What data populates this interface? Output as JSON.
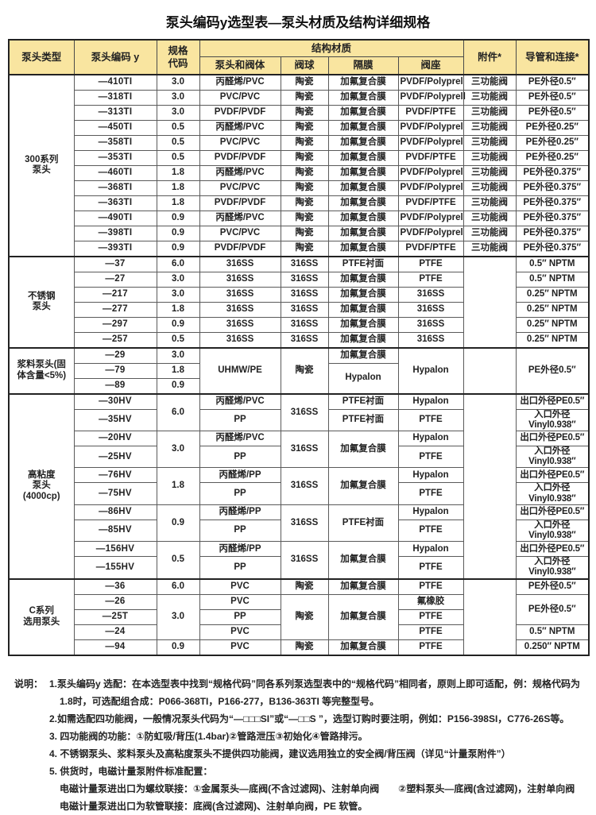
{
  "title": "泵头编码y选型表—泵头材质及结构详细规格",
  "table": {
    "headers": {
      "pump_type": "泵头类型",
      "pump_code": "泵头编码 y",
      "spec_code": "规格\n代码",
      "structure_material": "结构材质",
      "head_valve_body": "泵头和阀体",
      "valve_ball": "阀球",
      "diaphragm": "隔膜",
      "valve_seat": "阀座",
      "accessory": "附件*",
      "tubing": "导管和连接*"
    },
    "header_bg_color": "#f9e5a0",
    "groups": [
      {
        "rows": [
          [
            {
              "t": "300系列\n泵头",
              "rs": 12
            },
            {
              "t": "—410TI"
            },
            {
              "t": "3.0"
            },
            {
              "t": "丙醛烯/PVC"
            },
            {
              "t": "陶瓷"
            },
            {
              "t": "加氟复合膜"
            },
            {
              "t": "PVDF/Polyprel"
            },
            {
              "t": "三功能阀"
            },
            {
              "t": "PE外径0.5″"
            }
          ],
          [
            null,
            {
              "t": "—318TI"
            },
            {
              "t": "3.0"
            },
            {
              "t": "PVC/PVC"
            },
            {
              "t": "陶瓷"
            },
            {
              "t": "加氟复合膜"
            },
            {
              "t": "PVDF/Polyprell"
            },
            {
              "t": "三功能阀"
            },
            {
              "t": "PE外径0.5″"
            }
          ],
          [
            null,
            {
              "t": "—313TI"
            },
            {
              "t": "3.0"
            },
            {
              "t": "PVDF/PVDF"
            },
            {
              "t": "陶瓷"
            },
            {
              "t": "加氟复合膜"
            },
            {
              "t": "PVDF/PTFE"
            },
            {
              "t": "三功能阀"
            },
            {
              "t": "PE外径0.5″"
            }
          ],
          [
            null,
            {
              "t": "—450TI"
            },
            {
              "t": "0.5"
            },
            {
              "t": "丙醛烯/PVC"
            },
            {
              "t": "陶瓷"
            },
            {
              "t": "加氟复合膜"
            },
            {
              "t": "PVDF/Polyprel"
            },
            {
              "t": "三功能阀"
            },
            {
              "t": "PE外径0.25″"
            }
          ],
          [
            null,
            {
              "t": "—358TI"
            },
            {
              "t": "0.5"
            },
            {
              "t": "PVC/PVC"
            },
            {
              "t": "陶瓷"
            },
            {
              "t": "加氟复合膜"
            },
            {
              "t": "PVDF/Polyprel"
            },
            {
              "t": "三功能阀"
            },
            {
              "t": "PE外径0.25″"
            }
          ],
          [
            null,
            {
              "t": "—353TI"
            },
            {
              "t": "0.5"
            },
            {
              "t": "PVDF/PVDF"
            },
            {
              "t": "陶瓷"
            },
            {
              "t": "加氟复合膜"
            },
            {
              "t": "PVDF/PTFE"
            },
            {
              "t": "三功能阀"
            },
            {
              "t": "PE外径0.25″"
            }
          ],
          [
            null,
            {
              "t": "—460TI"
            },
            {
              "t": "1.8"
            },
            {
              "t": "丙醛烯/PVC"
            },
            {
              "t": "陶瓷"
            },
            {
              "t": "加氟复合膜"
            },
            {
              "t": "PVDF/Polyprel"
            },
            {
              "t": "三功能阀"
            },
            {
              "t": "PE外径0.375″"
            }
          ],
          [
            null,
            {
              "t": "—368TI"
            },
            {
              "t": "1.8"
            },
            {
              "t": "PVC/PVC"
            },
            {
              "t": "陶瓷"
            },
            {
              "t": "加氟复合膜"
            },
            {
              "t": "PVDF/Polyprel"
            },
            {
              "t": "三功能阀"
            },
            {
              "t": "PE外径0.375″"
            }
          ],
          [
            null,
            {
              "t": "—363TI"
            },
            {
              "t": "1.8"
            },
            {
              "t": "PVDF/PVDF"
            },
            {
              "t": "陶瓷"
            },
            {
              "t": "加氟复合膜"
            },
            {
              "t": "PVDF/PTFE"
            },
            {
              "t": "三功能阀"
            },
            {
              "t": "PE外径0.375″"
            }
          ],
          [
            null,
            {
              "t": "—490TI"
            },
            {
              "t": "0.9"
            },
            {
              "t": "丙醛烯/PVC"
            },
            {
              "t": "陶瓷"
            },
            {
              "t": "加氟复合膜"
            },
            {
              "t": "PVDF/Polyprel"
            },
            {
              "t": "三功能阀"
            },
            {
              "t": "PE外径0.375″"
            }
          ],
          [
            null,
            {
              "t": "—398TI"
            },
            {
              "t": "0.9"
            },
            {
              "t": "PVC/PVC"
            },
            {
              "t": "陶瓷"
            },
            {
              "t": "加氟复合膜"
            },
            {
              "t": "PVDF/Polyprel"
            },
            {
              "t": "三功能阀"
            },
            {
              "t": "PE外径0.375″"
            }
          ],
          [
            null,
            {
              "t": "—393TI"
            },
            {
              "t": "0.9"
            },
            {
              "t": "PVDF/PVDF"
            },
            {
              "t": "陶瓷"
            },
            {
              "t": "加氟复合膜"
            },
            {
              "t": "PVDF/PTFE"
            },
            {
              "t": "三功能阀"
            },
            {
              "t": "PE外径0.375″"
            }
          ]
        ]
      },
      {
        "rows": [
          [
            {
              "t": "不锈钢\n泵头",
              "rs": 6
            },
            {
              "t": "—37"
            },
            {
              "t": "6.0"
            },
            {
              "t": "316SS"
            },
            {
              "t": "316SS"
            },
            {
              "t": "PTFE衬面"
            },
            {
              "t": "PTFE"
            },
            {
              "t": "",
              "rs": 6
            },
            {
              "t": "0.5″ NPTM"
            }
          ],
          [
            null,
            {
              "t": "—27"
            },
            {
              "t": "3.0"
            },
            {
              "t": "316SS"
            },
            {
              "t": "316SS"
            },
            {
              "t": "加氟复合膜"
            },
            {
              "t": "PTFE"
            },
            null,
            {
              "t": "0.5″ NPTM"
            }
          ],
          [
            null,
            {
              "t": "—217"
            },
            {
              "t": "3.0"
            },
            {
              "t": "316SS"
            },
            {
              "t": "316SS"
            },
            {
              "t": "加氟复合膜"
            },
            {
              "t": "316SS"
            },
            null,
            {
              "t": "0.25″ NPTM"
            }
          ],
          [
            null,
            {
              "t": "—277"
            },
            {
              "t": "1.8"
            },
            {
              "t": "316SS"
            },
            {
              "t": "316SS"
            },
            {
              "t": "加氟复合膜"
            },
            {
              "t": "316SS"
            },
            null,
            {
              "t": "0.25″ NPTM"
            }
          ],
          [
            null,
            {
              "t": "—297"
            },
            {
              "t": "0.9"
            },
            {
              "t": "316SS"
            },
            {
              "t": "316SS"
            },
            {
              "t": "加氟复合膜"
            },
            {
              "t": "316SS"
            },
            null,
            {
              "t": "0.25″ NPTM"
            }
          ],
          [
            null,
            {
              "t": "—257"
            },
            {
              "t": "0.5"
            },
            {
              "t": "316SS"
            },
            {
              "t": "316SS"
            },
            {
              "t": "加氟复合膜"
            },
            {
              "t": "316SS"
            },
            null,
            {
              "t": "0.25″ NPTM"
            }
          ]
        ]
      },
      {
        "rows": [
          [
            {
              "t": "浆料泵头(固\n体含量<5%)",
              "rs": 3
            },
            {
              "t": "—29"
            },
            {
              "t": "3.0"
            },
            {
              "t": "UHMW/PE",
              "rs": 3
            },
            {
              "t": "陶瓷",
              "rs": 3
            },
            {
              "t": "加氟复合膜"
            },
            {
              "t": "Hypalon",
              "rs": 3
            },
            {
              "t": "",
              "rs": 3
            },
            {
              "t": "PE外径0.5″",
              "rs": 3
            }
          ],
          [
            null,
            {
              "t": "—79"
            },
            {
              "t": "1.8"
            },
            null,
            null,
            {
              "t": "Hypalon",
              "rs": 2,
              "c": "vt"
            },
            null,
            null,
            null
          ],
          [
            null,
            {
              "t": "—89"
            },
            {
              "t": "0.9"
            },
            null,
            null,
            null,
            null,
            null,
            null
          ]
        ]
      },
      {
        "rows": [
          [
            {
              "t": "高粘度\n泵头\n(4000cp)",
              "rs": 10
            },
            {
              "t": "—30HV"
            },
            {
              "t": "6.0",
              "rs": 2,
              "c": "vb"
            },
            {
              "t": "丙醛烯/PVC"
            },
            {
              "t": "316SS",
              "rs": 2,
              "c": "vt"
            },
            {
              "t": "PTFE衬面"
            },
            {
              "t": "Hypalon"
            },
            {
              "t": "",
              "rs": 10
            },
            {
              "t": "出口外径PE0.5″",
              "c": "sm"
            }
          ],
          [
            null,
            {
              "t": "—35HV"
            },
            null,
            {
              "t": "PP"
            },
            null,
            {
              "t": "PTFE衬面"
            },
            {
              "t": "PTFE"
            },
            null,
            {
              "t": "入口外径Vinyl0.938″",
              "c": "sm"
            }
          ],
          [
            null,
            {
              "t": "—20HV"
            },
            {
              "t": "3.0",
              "rs": 2,
              "c": "vb"
            },
            {
              "t": "丙醛烯/PVC"
            },
            {
              "t": "316SS",
              "rs": 2,
              "c": "vt"
            },
            {
              "t": "加氟复合膜",
              "rs": 2,
              "c": "vt"
            },
            {
              "t": "Hypalon"
            },
            null,
            {
              "t": "出口外径PE0.5″",
              "c": "sm"
            }
          ],
          [
            null,
            {
              "t": "—25HV"
            },
            null,
            {
              "t": "PP"
            },
            null,
            null,
            {
              "t": "PTFE"
            },
            null,
            {
              "t": "入口外径Vinyl0.938″",
              "c": "sm"
            }
          ],
          [
            null,
            {
              "t": "—76HV"
            },
            {
              "t": "1.8",
              "rs": 2,
              "c": "vb"
            },
            {
              "t": "丙醛烯/PP"
            },
            {
              "t": "316SS",
              "rs": 2,
              "c": "vt"
            },
            {
              "t": "加氟复合膜",
              "rs": 2,
              "c": "vt"
            },
            {
              "t": "Hypalon"
            },
            null,
            {
              "t": "出口外径PE0.5″",
              "c": "sm"
            }
          ],
          [
            null,
            {
              "t": "—75HV"
            },
            null,
            {
              "t": "PP"
            },
            null,
            null,
            {
              "t": "PTFE"
            },
            null,
            {
              "t": "入口外径Vinyl0.938″",
              "c": "sm"
            }
          ],
          [
            null,
            {
              "t": "—86HV"
            },
            {
              "t": "0.9",
              "rs": 2,
              "c": "vb"
            },
            {
              "t": "丙醛烯/PP"
            },
            {
              "t": "316SS",
              "rs": 2,
              "c": "vt"
            },
            {
              "t": "PTFE衬面",
              "rs": 2,
              "c": "vt"
            },
            {
              "t": "Hypalon"
            },
            null,
            {
              "t": "出口外径PE0.5″",
              "c": "sm"
            }
          ],
          [
            null,
            {
              "t": "—85HV"
            },
            null,
            {
              "t": "PP"
            },
            null,
            null,
            {
              "t": "PTFE"
            },
            null,
            {
              "t": "入口外径Vinyl0.938″",
              "c": "sm"
            }
          ],
          [
            null,
            {
              "t": "—156HV"
            },
            {
              "t": "0.5",
              "rs": 2,
              "c": "vb"
            },
            {
              "t": "丙醛烯/PP"
            },
            {
              "t": "316SS",
              "rs": 2,
              "c": "vt"
            },
            {
              "t": "加氟复合膜",
              "rs": 2,
              "c": "vt"
            },
            {
              "t": "Hypalon"
            },
            null,
            {
              "t": "出口外径PE0.5″",
              "c": "sm"
            }
          ],
          [
            null,
            {
              "t": "—155HV"
            },
            null,
            {
              "t": "PP"
            },
            null,
            null,
            {
              "t": "PTFE"
            },
            null,
            {
              "t": "入口外径Vinyl0.938″",
              "c": "sm"
            }
          ]
        ]
      },
      {
        "rows": [
          [
            {
              "t": "C系列\n选用泵头",
              "rs": 5
            },
            {
              "t": "—36"
            },
            {
              "t": "6.0"
            },
            {
              "t": "PVC"
            },
            {
              "t": "陶瓷"
            },
            {
              "t": "加氟复合膜"
            },
            {
              "t": "PTFE"
            },
            {
              "t": "",
              "rs": 5
            },
            {
              "t": "PE外径0.5″"
            }
          ],
          [
            null,
            {
              "t": "—26"
            },
            {
              "t": "3.0",
              "rs": 3
            },
            {
              "t": "PVC"
            },
            {
              "t": "陶瓷",
              "rs": 3
            },
            {
              "t": "加氟复合膜",
              "rs": 3
            },
            {
              "t": "氟橡胶"
            },
            null,
            {
              "t": "PE外径0.5″",
              "rs": 2,
              "c": "vt"
            }
          ],
          [
            null,
            {
              "t": "—25T"
            },
            null,
            {
              "t": "PP"
            },
            null,
            null,
            {
              "t": "PTFE"
            },
            null,
            null
          ],
          [
            null,
            {
              "t": "—24"
            },
            null,
            {
              "t": "PVC"
            },
            null,
            null,
            {
              "t": "PTFE"
            },
            null,
            {
              "t": "0.5″ NPTM"
            }
          ],
          [
            null,
            {
              "t": "—94"
            },
            {
              "t": "0.9"
            },
            {
              "t": "PVC"
            },
            {
              "t": "陶瓷"
            },
            {
              "t": "加氟复合膜"
            },
            {
              "t": "PTFE"
            },
            null,
            {
              "t": "0.250″ NPTM"
            }
          ]
        ]
      }
    ]
  },
  "notes": {
    "label": "说明：",
    "lines": [
      {
        "indent": 0,
        "text": "1.泵头编码y 选配：在本选型表中找到“规格代码”同各系列泵选型表中的“规格代码”相同者，原则上即可适配，例：规格代码为"
      },
      {
        "indent": 1,
        "text": "1.8时，可选配组合成：P066-368TI，P166-277，B136-363TI 等完整型号。"
      },
      {
        "indent": 0,
        "text": "2.如需选配四功能阀，一般情况泵头代码为“—□□□SI”或“—□□S ”，选型订购时要注明，例如：P156-398SI，C776-26S等。"
      },
      {
        "indent": 0,
        "text": "3. 四功能阀的功能：①防虹吸/背压(1.4bar)②管路泄压③初始化④管路排污。"
      },
      {
        "indent": 0,
        "text": "4. 不锈钢泵头、浆料泵头及高粘度泵头不提供四功能阀，建议选用独立的安全阀/背压阀（详见“计量泵附件”）"
      },
      {
        "indent": 0,
        "text": "5. 供货时，电磁计量泵附件标准配置："
      },
      {
        "indent": 1,
        "text": "电磁计量泵进出口为螺纹联接：①金属泵头—底阀(不含过滤网)、注射单向阀　　②塑料泵头—底阀(含过滤网)，注射单向阀"
      },
      {
        "indent": 1,
        "text": "电磁计量泵进出口为软管联接：底阀(含过滤网)、注射单向阀，PE 软管。"
      }
    ]
  }
}
